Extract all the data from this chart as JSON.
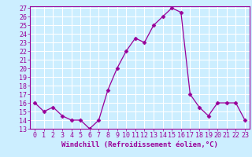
{
  "x": [
    0,
    1,
    2,
    3,
    4,
    5,
    6,
    7,
    8,
    9,
    10,
    11,
    12,
    13,
    14,
    15,
    16,
    17,
    18,
    19,
    20,
    21,
    22,
    23
  ],
  "y": [
    16,
    15,
    15.5,
    14.5,
    14,
    14,
    13,
    14,
    17.5,
    20,
    22,
    23.5,
    23,
    25,
    26,
    27,
    26.5,
    17,
    15.5,
    14.5,
    16,
    16,
    16,
    14
  ],
  "line_color": "#990099",
  "marker": "D",
  "marker_size": 2.5,
  "bg_color": "#cceeff",
  "grid_color": "#ffffff",
  "xlabel": "Windchill (Refroidissement éolien,°C)",
  "ylim": [
    13,
    27
  ],
  "xlim": [
    -0.5,
    23.5
  ],
  "yticks": [
    13,
    14,
    15,
    16,
    17,
    18,
    19,
    20,
    21,
    22,
    23,
    24,
    25,
    26,
    27
  ],
  "xticks": [
    0,
    1,
    2,
    3,
    4,
    5,
    6,
    7,
    8,
    9,
    10,
    11,
    12,
    13,
    14,
    15,
    16,
    17,
    18,
    19,
    20,
    21,
    22,
    23
  ],
  "tick_color": "#990099",
  "label_color": "#990099",
  "xlabel_fontsize": 6.5,
  "tick_fontsize": 6
}
